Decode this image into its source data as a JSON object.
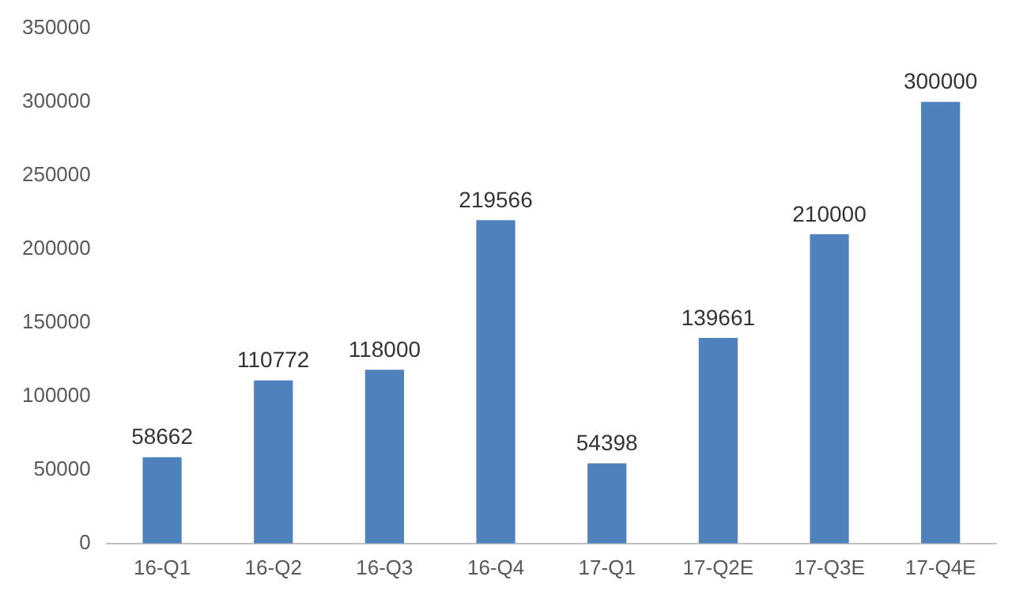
{
  "chart_data": {
    "type": "bar",
    "categories": [
      "16-Q1",
      "16-Q2",
      "16-Q3",
      "16-Q4",
      "17-Q1",
      "17-Q2E",
      "17-Q3E",
      "17-Q4E"
    ],
    "values": [
      58662,
      110772,
      118000,
      219566,
      54398,
      139661,
      210000,
      300000
    ],
    "color": "#4f81bd",
    "ylim": [
      0,
      350000
    ],
    "yticks": [
      0,
      50000,
      100000,
      150000,
      200000,
      250000,
      300000,
      350000
    ],
    "grid": false,
    "legend": false,
    "data_labels": true
  }
}
